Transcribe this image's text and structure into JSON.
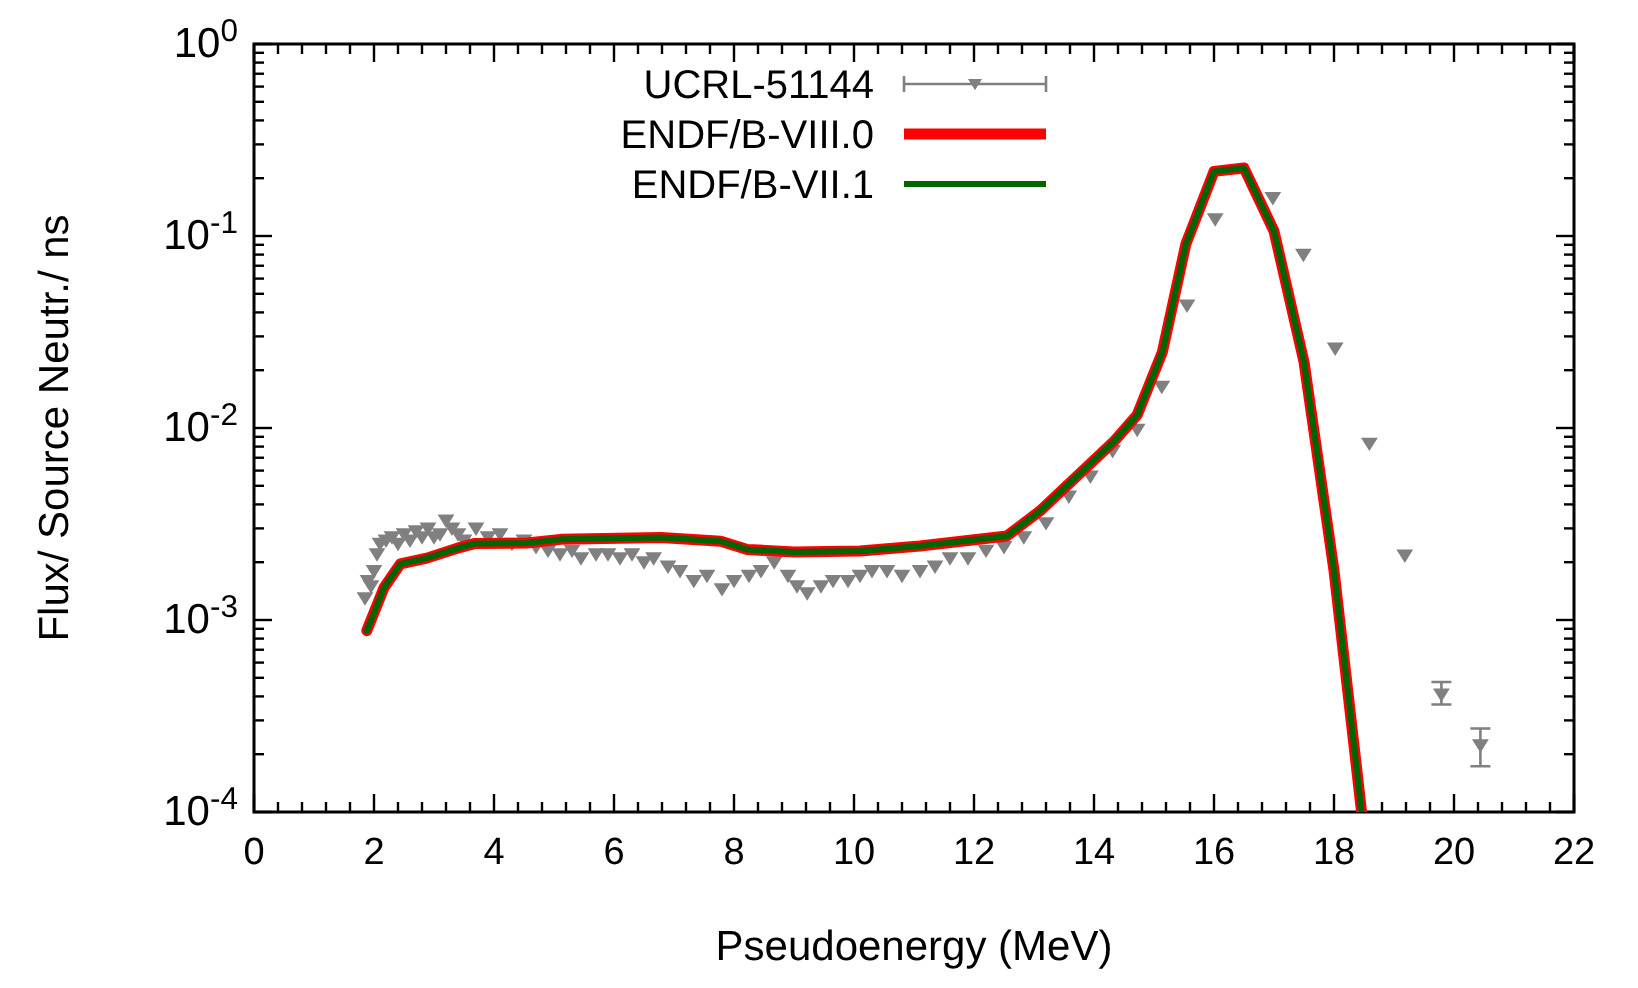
{
  "chart_data": {
    "type": "line",
    "xlabel": "Pseudoenergy (MeV)",
    "ylabel": "Flux/ Source Neutr./ ns",
    "log": "y",
    "legend": "top left",
    "grid": false,
    "xlim": [
      0,
      22
    ],
    "ylim": [
      0.0001,
      1
    ],
    "xticks": [
      0,
      {
        "value": 0.4,
        "label": null
      },
      {
        "value": 0.8,
        "label": null
      },
      {
        "value": 1.2,
        "label": null
      },
      {
        "value": 1.6,
        "label": null
      },
      2,
      {
        "value": 2.4,
        "label": null
      },
      {
        "value": 2.8,
        "label": null
      },
      {
        "value": 3.2,
        "label": null
      },
      {
        "value": 3.6,
        "label": null
      },
      4,
      {
        "value": 4.4,
        "label": null
      },
      {
        "value": 4.8,
        "label": null
      },
      {
        "value": 5.2,
        "label": null
      },
      {
        "value": 5.6,
        "label": null
      },
      6,
      {
        "value": 6.4,
        "label": null
      },
      {
        "value": 6.8,
        "label": null
      },
      {
        "value": 7.2,
        "label": null
      },
      {
        "value": 7.6,
        "label": null
      },
      8,
      {
        "value": 8.4,
        "label": null
      },
      {
        "value": 8.8,
        "label": null
      },
      {
        "value": 9.2,
        "label": null
      },
      {
        "value": 9.6,
        "label": null
      },
      10,
      {
        "value": 10.4,
        "label": null
      },
      {
        "value": 10.8,
        "label": null
      },
      {
        "value": 11.2,
        "label": null
      },
      {
        "value": 11.6,
        "label": null
      },
      12,
      {
        "value": 12.4,
        "label": null
      },
      {
        "value": 12.8,
        "label": null
      },
      {
        "value": 13.2,
        "label": null
      },
      {
        "value": 13.6,
        "label": null
      },
      14,
      {
        "value": 14.4,
        "label": null
      },
      {
        "value": 14.8,
        "label": null
      },
      {
        "value": 15.2,
        "label": null
      },
      {
        "value": 15.6,
        "label": null
      },
      16,
      {
        "value": 16.4,
        "label": null
      },
      {
        "value": 16.8,
        "label": null
      },
      {
        "value": 17.2,
        "label": null
      },
      {
        "value": 17.6,
        "label": null
      },
      18,
      {
        "value": 18.4,
        "label": null
      },
      {
        "value": 18.8,
        "label": null
      },
      {
        "value": 19.2,
        "label": null
      },
      {
        "value": 19.6,
        "label": null
      },
      20,
      {
        "value": 20.4,
        "label": null
      },
      {
        "value": 20.8,
        "label": null
      },
      {
        "value": 21.2,
        "label": null
      },
      {
        "value": 21.6,
        "label": null
      },
      22
    ],
    "yticks": [
      {
        "value": 0.0001,
        "label": "10$^{-4}$"
      },
      {
        "value": 0.0002,
        "label": null
      },
      {
        "value": 0.0003,
        "label": null
      },
      {
        "value": 0.0004,
        "label": null
      },
      {
        "value": 0.0005,
        "label": null
      },
      {
        "value": 0.0006,
        "label": null
      },
      {
        "value": 0.0007,
        "label": null
      },
      {
        "value": 0.0008,
        "label": null
      },
      {
        "value": 0.0009,
        "label": null
      },
      {
        "value": 0.001,
        "label": "10$^{-3}$"
      },
      {
        "value": 0.002,
        "label": null
      },
      {
        "value": 0.003,
        "label": null
      },
      {
        "value": 0.004,
        "label": null
      },
      {
        "value": 0.005,
        "label": null
      },
      {
        "value": 0.006,
        "label": null
      },
      {
        "value": 0.007,
        "label": null
      },
      {
        "value": 0.008,
        "label": null
      },
      {
        "value": 0.009,
        "label": null
      },
      {
        "value": 0.01,
        "label": "10$^{-2}$"
      },
      {
        "value": 0.02,
        "label": null
      },
      {
        "value": 0.03,
        "label": null
      },
      {
        "value": 0.04,
        "label": null
      },
      {
        "value": 0.05,
        "label": null
      },
      {
        "value": 0.06,
        "label": null
      },
      {
        "value": 0.07,
        "label": null
      },
      {
        "value": 0.08,
        "label": null
      },
      {
        "value": 0.09,
        "label": null
      },
      {
        "value": 0.1,
        "label": "10$^{-1}$"
      },
      {
        "value": 0.2,
        "label": null
      },
      {
        "value": 0.3,
        "label": null
      },
      {
        "value": 0.4,
        "label": null
      },
      {
        "value": 0.5,
        "label": null
      },
      {
        "value": 0.6,
        "label": null
      },
      {
        "value": 0.7,
        "label": null
      },
      {
        "value": 0.8,
        "label": null
      },
      {
        "value": 0.9,
        "label": null
      },
      {
        "value": 1,
        "label": "10$^{0}$"
      }
    ],
    "series": [
      {
        "name": "UCRL-51144",
        "type": "scatter",
        "marker": "triangle",
        "color": "#808080",
        "x": [
          1.85,
          1.9,
          1.95,
          2.0,
          2.05,
          2.1,
          2.2,
          2.3,
          2.4,
          2.5,
          2.6,
          2.7,
          2.8,
          2.9,
          3.0,
          3.1,
          3.2,
          3.3,
          3.4,
          3.5,
          3.7,
          3.9,
          4.1,
          4.3,
          4.5,
          4.7,
          4.9,
          5.1,
          5.3,
          5.45,
          5.7,
          5.9,
          6.1,
          6.3,
          6.5,
          6.66,
          6.9,
          7.1,
          7.33,
          7.55,
          7.8,
          8.0,
          8.25,
          8.45,
          8.67,
          8.9,
          9.05,
          9.22,
          9.45,
          9.65,
          9.9,
          10.1,
          10.3,
          10.55,
          10.8,
          11.1,
          11.35,
          11.6,
          11.9,
          12.2,
          12.5,
          12.83,
          13.2,
          13.58,
          13.94,
          14.31,
          14.72,
          15.13,
          15.55,
          16.02,
          16.98,
          17.49,
          18.02,
          18.59,
          19.18,
          19.79,
          20.44
        ],
        "values": [
          0.0013,
          0.0016,
          0.0015,
          0.0018,
          0.0022,
          0.0025,
          0.0026,
          0.0027,
          0.0025,
          0.0028,
          0.0026,
          0.0029,
          0.0027,
          0.003,
          0.0027,
          0.0028,
          0.0033,
          0.003,
          0.0028,
          0.0026,
          0.003,
          0.0027,
          0.0028,
          0.0025,
          0.0026,
          0.0024,
          0.0023,
          0.0022,
          0.0023,
          0.0021,
          0.0022,
          0.0022,
          0.0021,
          0.0022,
          0.002,
          0.0021,
          0.0019,
          0.0018,
          0.0016,
          0.0017,
          0.00145,
          0.0016,
          0.0017,
          0.0018,
          0.002,
          0.0017,
          0.0015,
          0.00138,
          0.0015,
          0.0016,
          0.0016,
          0.0017,
          0.0018,
          0.0018,
          0.0017,
          0.0018,
          0.0019,
          0.0021,
          0.0021,
          0.0023,
          0.0024,
          0.0027,
          0.0032,
          0.0044,
          0.0056,
          0.0076,
          0.0098,
          0.0164,
          0.0435,
          0.1225,
          0.158,
          0.08,
          0.026,
          0.0083,
          0.00217,
          0.00041,
          0.000223
        ],
        "errors": [
          null,
          null,
          null,
          null,
          null,
          null,
          null,
          null,
          null,
          null,
          null,
          null,
          null,
          null,
          null,
          null,
          null,
          null,
          null,
          null,
          null,
          null,
          null,
          null,
          null,
          null,
          null,
          null,
          null,
          null,
          null,
          null,
          null,
          null,
          null,
          null,
          null,
          null,
          null,
          null,
          null,
          null,
          null,
          null,
          null,
          null,
          null,
          null,
          null,
          null,
          null,
          null,
          null,
          null,
          null,
          null,
          null,
          null,
          null,
          null,
          null,
          null,
          null,
          null,
          null,
          null,
          null,
          null,
          null,
          null,
          null,
          null,
          null,
          null,
          null,
          [
            0.000363,
            0.000475
          ],
          [
            0.000173,
            0.000272
          ]
        ]
      },
      {
        "name": "ENDF/B-VIII.0",
        "marker": "none",
        "color": "#ff0000",
        "x": [
          1.88,
          2.17,
          2.44,
          2.88,
          3.44,
          3.67,
          4.55,
          5.11,
          6.78,
          7.78,
          8.22,
          9.0,
          10.1,
          11.1,
          12.55,
          13.1,
          14.33,
          14.72,
          15.14,
          15.53,
          16.0,
          16.5,
          17.0,
          17.5,
          18.0,
          18.46
        ],
        "values": [
          0.00088,
          0.00148,
          0.00196,
          0.0021,
          0.00239,
          0.0025,
          0.00252,
          0.00263,
          0.00269,
          0.00257,
          0.00233,
          0.00226,
          0.00229,
          0.00243,
          0.00274,
          0.0037,
          0.0085,
          0.0117,
          0.0249,
          0.0905,
          0.217,
          0.226,
          0.106,
          0.0221,
          0.00181,
          0.0001
        ]
      },
      {
        "name": "ENDF/B-VII.1",
        "marker": "none",
        "color": "#006400",
        "x": [
          1.88,
          2.17,
          2.44,
          2.88,
          3.44,
          3.67,
          4.55,
          5.11,
          6.78,
          7.78,
          8.22,
          9.0,
          10.1,
          11.1,
          12.55,
          13.1,
          14.33,
          14.72,
          15.14,
          15.53,
          16.0,
          16.5,
          17.0,
          17.5,
          18.0,
          18.46
        ],
        "values": [
          0.00088,
          0.00148,
          0.00196,
          0.0021,
          0.00239,
          0.0025,
          0.00252,
          0.00263,
          0.00269,
          0.00257,
          0.00233,
          0.00226,
          0.00229,
          0.00243,
          0.00274,
          0.0037,
          0.0085,
          0.0117,
          0.0249,
          0.0905,
          0.217,
          0.226,
          0.106,
          0.0221,
          0.00181,
          0.0001
        ]
      }
    ]
  }
}
